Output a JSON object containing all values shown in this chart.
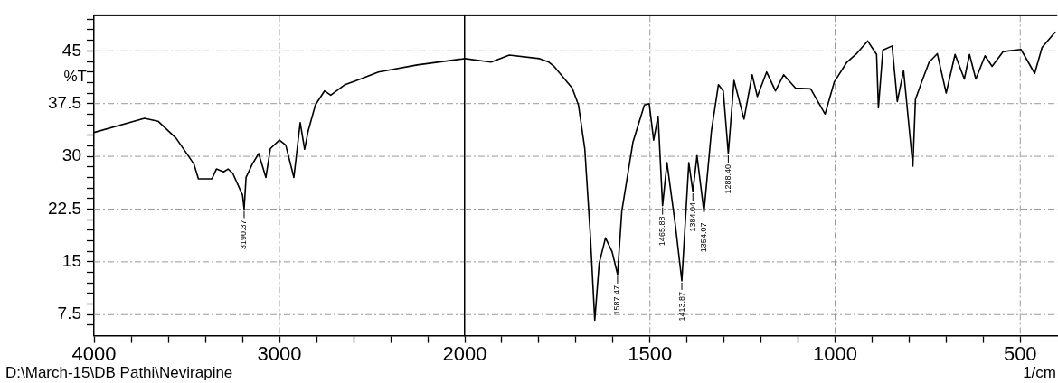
{
  "chart_data": [
    {
      "type": "line",
      "ylabel": "%T",
      "x": [
        4000,
        3728,
        3655,
        3558,
        3461,
        3437,
        3364,
        3340,
        3301,
        3277,
        3252,
        3199,
        3190.37,
        3180,
        3146,
        3112,
        3073,
        3049,
        3000,
        2966,
        2922,
        2888,
        2864,
        2845,
        2806,
        2757,
        2723,
        2646,
        2563,
        2466,
        2257,
        2000
      ],
      "series": [
        {
          "color": "#000000",
          "values": [
            33.4,
            35.4,
            35.0,
            32.6,
            28.9,
            26.8,
            26.8,
            28.2,
            27.8,
            28.2,
            27.6,
            24.5,
            22.5,
            27.0,
            28.9,
            30.4,
            27.0,
            31.1,
            32.3,
            31.6,
            27.0,
            34.8,
            31.0,
            33.6,
            37.3,
            39.3,
            38.7,
            40.2,
            41.0,
            42.0,
            43.0,
            43.9
          ]
        }
      ],
      "xlim": [
        4000,
        2000
      ],
      "xticks": [
        4000,
        {
          "value": 3800,
          "label": null
        },
        {
          "value": 3600,
          "label": null
        },
        {
          "value": 3400,
          "label": null
        },
        {
          "value": 3200,
          "label": null
        },
        3000,
        {
          "value": 2800,
          "label": null
        },
        {
          "value": 2600,
          "label": null
        },
        {
          "value": 2400,
          "label": null
        },
        {
          "value": 2200,
          "label": null
        }
      ],
      "ylim": [
        4.5,
        50
      ],
      "yticks": [
        {
          "value": 6,
          "label": null
        },
        7.5,
        {
          "value": 9,
          "label": null
        },
        {
          "value": 10.5,
          "label": null
        },
        {
          "value": 12,
          "label": null
        },
        {
          "value": 13.5,
          "label": null
        },
        15,
        {
          "value": 16.5,
          "label": null
        },
        {
          "value": 18,
          "label": null
        },
        {
          "value": 19.5,
          "label": null
        },
        {
          "value": 21,
          "label": null
        },
        22.5,
        {
          "value": 24,
          "label": null
        },
        {
          "value": 25.5,
          "label": null
        },
        {
          "value": 27,
          "label": null
        },
        {
          "value": 28.5,
          "label": null
        },
        30,
        {
          "value": 31.5,
          "label": null
        },
        {
          "value": 33,
          "label": null
        },
        {
          "value": 34.5,
          "label": null
        },
        {
          "value": 36,
          "label": null
        },
        37.5,
        {
          "value": 39,
          "label": null
        },
        {
          "value": 40.5,
          "label": null
        },
        {
          "value": 42,
          "label": null
        },
        {
          "value": 43.5,
          "label": null
        },
        45,
        {
          "value": 46.5,
          "label": null
        },
        {
          "value": 48,
          "label": null
        },
        {
          "value": 49.5,
          "label": null
        }
      ],
      "grid": true,
      "legend": false,
      "marker": "none",
      "line_style": "solid",
      "annotations": [
        "D:\\March-15\\DB Pathi\\Nevirapine",
        {
          "text": "3190.37",
          "x": 3190.37,
          "y": 22.5
        }
      ]
    },
    {
      "type": "line",
      "xlabel": "1/cm",
      "x": [
        2000,
        1929,
        1880,
        1798,
        1783,
        1773,
        1759,
        1710,
        1693,
        1676,
        1661,
        1649,
        1637,
        1620,
        1602,
        1587.47,
        1576,
        1546,
        1515,
        1502,
        1490,
        1478,
        1465.88,
        1454,
        1432,
        1413.87,
        1395,
        1384.04,
        1373,
        1354.07,
        1334,
        1315,
        1302,
        1288.4,
        1273,
        1246,
        1224,
        1210,
        1185,
        1161,
        1139,
        1107,
        1066,
        1027,
        1002,
        968,
        944,
        912,
        888,
        883,
        871,
        846,
        832,
        815,
        790,
        783,
        766,
        746,
        724,
        700,
        676,
        651,
        637,
        620,
        595,
        576,
        546,
        498,
        461,
        441,
        405
      ],
      "series": [
        {
          "color": "#000000",
          "values": [
            43.9,
            43.4,
            44.4,
            43.9,
            43.6,
            43.4,
            42.8,
            39.7,
            37.3,
            31.1,
            18.8,
            6.7,
            14.8,
            18.4,
            16.4,
            13.2,
            22.2,
            32.0,
            37.3,
            37.5,
            32.3,
            35.7,
            23.0,
            29.1,
            20.5,
            12.3,
            29.1,
            25.0,
            30.1,
            22.1,
            33.6,
            40.2,
            39.3,
            30.4,
            40.8,
            35.3,
            41.6,
            38.5,
            42.0,
            39.3,
            41.6,
            39.7,
            39.6,
            36.0,
            40.6,
            43.4,
            44.5,
            46.4,
            44.5,
            36.9,
            45.1,
            45.7,
            37.8,
            42.2,
            28.6,
            38.1,
            40.6,
            43.4,
            44.6,
            39.0,
            44.5,
            41.0,
            44.5,
            41.0,
            44.3,
            42.8,
            44.9,
            45.2,
            41.8,
            45.5,
            47.7
          ]
        }
      ],
      "xlim": [
        2000,
        400
      ],
      "xticks": [
        2000,
        {
          "value": 1900,
          "label": null
        },
        {
          "value": 1800,
          "label": null
        },
        {
          "value": 1700,
          "label": null
        },
        {
          "value": 1600,
          "label": null
        },
        1500,
        {
          "value": 1400,
          "label": null
        },
        {
          "value": 1300,
          "label": null
        },
        {
          "value": 1200,
          "label": null
        },
        {
          "value": 1100,
          "label": null
        },
        1000,
        {
          "value": 900,
          "label": null
        },
        {
          "value": 800,
          "label": null
        },
        {
          "value": 700,
          "label": null
        },
        {
          "value": 600,
          "label": null
        },
        500
      ],
      "ylim": [
        4.5,
        50
      ],
      "yticks": [
        7.5,
        15,
        22.5,
        30,
        37.5,
        45
      ],
      "tick_labels": "x",
      "grid": true,
      "legend": false,
      "marker": "none",
      "line_style": "solid",
      "annotations": [
        {
          "text": "1587.47",
          "x": 1587.47,
          "y": 13.2
        },
        {
          "text": "1465.88",
          "x": 1465.88,
          "y": 23.0
        },
        {
          "text": "1413.87",
          "x": 1413.87,
          "y": 12.3
        },
        {
          "text": "1384.04",
          "x": 1384.04,
          "y": 25.0
        },
        {
          "text": "1354.07",
          "x": 1354.07,
          "y": 22.1
        },
        {
          "text": "1288.40",
          "x": 1288.4,
          "y": 30.4
        }
      ]
    }
  ]
}
